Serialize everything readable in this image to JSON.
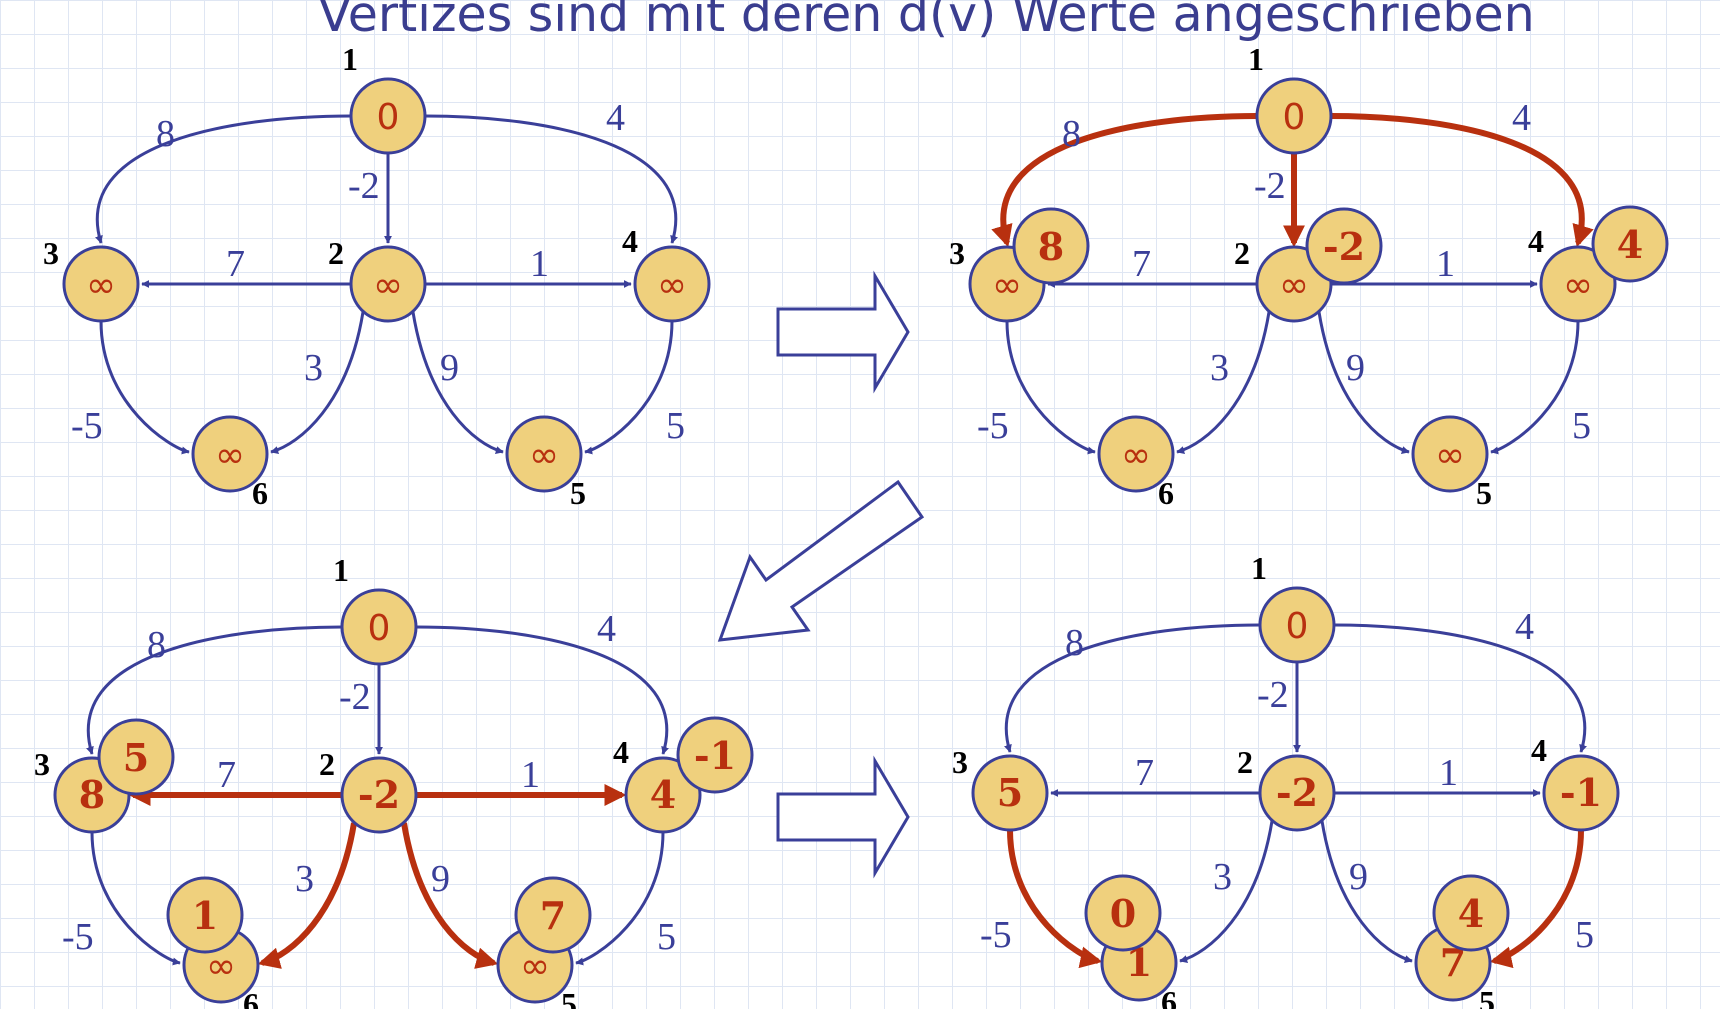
{
  "title": "Vertizes sind mit deren d(v) Werte angeschrieben",
  "node_ids": [
    "1",
    "2",
    "3",
    "4",
    "5",
    "6"
  ],
  "edges": [
    {
      "from": "1",
      "to": "3",
      "weight": "8"
    },
    {
      "from": "1",
      "to": "2",
      "weight": "-2"
    },
    {
      "from": "1",
      "to": "4",
      "weight": "4"
    },
    {
      "from": "2",
      "to": "3",
      "weight": "7"
    },
    {
      "from": "2",
      "to": "4",
      "weight": "1"
    },
    {
      "from": "2",
      "to": "6",
      "weight": "3"
    },
    {
      "from": "2",
      "to": "5",
      "weight": "9"
    },
    {
      "from": "3",
      "to": "6",
      "weight": "-5"
    },
    {
      "from": "4",
      "to": "5",
      "weight": "5"
    }
  ],
  "panels": [
    {
      "values": {
        "1": "0",
        "2": "∞",
        "3": "∞",
        "4": "∞",
        "5": "∞",
        "6": "∞"
      },
      "updates": {},
      "highlighted_edges": []
    },
    {
      "values": {
        "1": "0",
        "2": "∞",
        "3": "∞",
        "4": "∞",
        "5": "∞",
        "6": "∞"
      },
      "updates": {
        "2": "-2",
        "3": "8",
        "4": "4"
      },
      "highlighted_edges": [
        "1-3",
        "1-2",
        "1-4"
      ]
    },
    {
      "values": {
        "1": "0",
        "2": "-2",
        "3": "8",
        "4": "4",
        "5": "∞",
        "6": "∞"
      },
      "updates": {
        "3": "5",
        "4": "-1",
        "5": "7",
        "6": "1"
      },
      "highlighted_edges": [
        "2-3",
        "2-4",
        "2-6",
        "2-5"
      ]
    },
    {
      "values": {
        "1": "0",
        "2": "-2",
        "3": "5",
        "4": "-1",
        "5": "7",
        "6": "1"
      },
      "updates": {
        "5": "4",
        "6": "0"
      },
      "highlighted_edges": [
        "3-6",
        "4-5"
      ]
    }
  ],
  "colors": {
    "edge": "#3a3f99",
    "highlight": "#b8300f",
    "node_fill": "#efd07d",
    "value_text": "#b8300f"
  },
  "icons": [
    "right-arrow-icon",
    "down-left-arrow-icon",
    "right-arrow-icon"
  ]
}
